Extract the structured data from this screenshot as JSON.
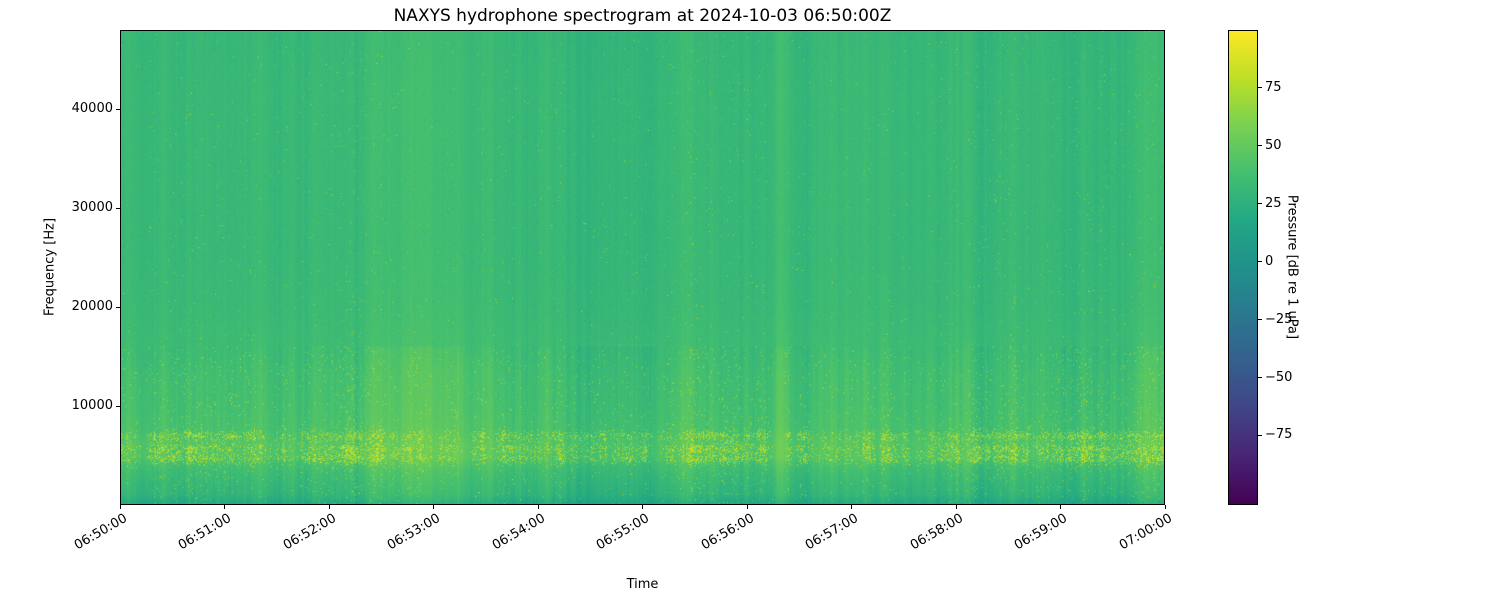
{
  "chart_data": {
    "type": "heatmap",
    "subtype": "spectrogram",
    "title": "NAXYS hydrophone spectrogram at 2024-10-03 06:50:00Z",
    "xlabel": "Time",
    "ylabel": "Frequency [Hz]",
    "x_ticks": [
      "06:50:00",
      "06:51:00",
      "06:52:00",
      "06:53:00",
      "06:54:00",
      "06:55:00",
      "06:56:00",
      "06:57:00",
      "06:58:00",
      "06:59:00",
      "07:00:00"
    ],
    "y_ticks": [
      {
        "value": 10000,
        "label": "10000"
      },
      {
        "value": 20000,
        "label": "20000"
      },
      {
        "value": 30000,
        "label": "30000"
      },
      {
        "value": 40000,
        "label": "40000"
      }
    ],
    "y_range": [
      0,
      48000
    ],
    "x_range": [
      "06:50:00",
      "07:00:00"
    ],
    "grid": false,
    "colorbar": {
      "label": "Pressure [dB re 1 uPa]",
      "colormap": "viridis",
      "range": [
        -105,
        100
      ],
      "ticks": [
        {
          "value": 75,
          "label": "75"
        },
        {
          "value": 50,
          "label": "50"
        },
        {
          "value": 25,
          "label": "25"
        },
        {
          "value": 0,
          "label": "0"
        },
        {
          "value": -25,
          "label": "−25"
        },
        {
          "value": -50,
          "label": "−50"
        },
        {
          "value": -75,
          "label": "−75"
        }
      ]
    },
    "colormap_stops": [
      [
        0.0,
        "#440154"
      ],
      [
        0.1,
        "#482475"
      ],
      [
        0.2,
        "#414487"
      ],
      [
        0.3,
        "#355f8d"
      ],
      [
        0.4,
        "#2a788e"
      ],
      [
        0.5,
        "#21918c"
      ],
      [
        0.6,
        "#22a884"
      ],
      [
        0.7,
        "#44bf70"
      ],
      [
        0.8,
        "#7ad151"
      ],
      [
        0.9,
        "#bddf26"
      ],
      [
        1.0,
        "#fde725"
      ]
    ],
    "spectral_profile_db": [
      [
        0,
        26
      ],
      [
        800,
        30
      ],
      [
        2000,
        33
      ],
      [
        3500,
        38
      ],
      [
        4800,
        46
      ],
      [
        6200,
        46
      ],
      [
        7500,
        42
      ],
      [
        10000,
        40
      ],
      [
        13000,
        39
      ],
      [
        16000,
        36
      ],
      [
        20000,
        34
      ],
      [
        26000,
        33
      ],
      [
        34000,
        33
      ],
      [
        42000,
        33
      ],
      [
        48000,
        32
      ]
    ],
    "texture": {
      "stripe_db": 2.6,
      "slow_stripe_db": 0.55,
      "noise_db": 5,
      "speckle_rows_hz": [
        4600,
        5600,
        6900
      ],
      "speckle_row_sigma_hz": 320,
      "speckle_db": [
        18,
        42
      ],
      "low_band_max_hz": 16000
    }
  }
}
